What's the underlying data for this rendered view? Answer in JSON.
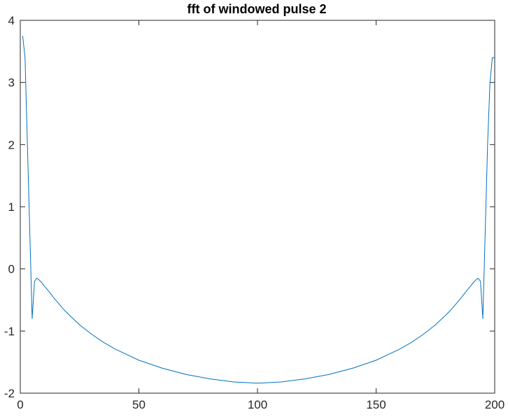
{
  "chart_data": {
    "type": "line",
    "title": "fft of windowed pulse 2",
    "xlabel": "",
    "ylabel": "",
    "xlim": [
      0,
      200
    ],
    "ylim": [
      -2,
      4
    ],
    "grid": false,
    "x_ticks": [
      "0",
      "50",
      "100",
      "150",
      "200"
    ],
    "y_ticks": [
      "-2",
      "-1",
      "0",
      "1",
      "2",
      "3",
      "4"
    ],
    "colors": {
      "line": "#0072BD",
      "axis": "#262626",
      "background": "#ffffff"
    },
    "series": [
      {
        "x": [
          1,
          2,
          3,
          4,
          5,
          6,
          7,
          8,
          9,
          10,
          12,
          14,
          16,
          18,
          20,
          25,
          30,
          35,
          40,
          50,
          60,
          70,
          80,
          90,
          100,
          110,
          120,
          130,
          140,
          150,
          160,
          165,
          170,
          175,
          180,
          182,
          184,
          186,
          188,
          190,
          191,
          192,
          193,
          194,
          195,
          196,
          197,
          198,
          199,
          200
        ],
        "y": [
          3.75,
          3.4,
          2.0,
          0.6,
          -0.8,
          -0.2,
          -0.15,
          -0.18,
          -0.22,
          -0.27,
          -0.36,
          -0.46,
          -0.55,
          -0.64,
          -0.72,
          -0.9,
          -1.05,
          -1.18,
          -1.29,
          -1.47,
          -1.6,
          -1.7,
          -1.77,
          -1.82,
          -1.84,
          -1.82,
          -1.77,
          -1.7,
          -1.6,
          -1.47,
          -1.29,
          -1.18,
          -1.05,
          -0.9,
          -0.72,
          -0.64,
          -0.55,
          -0.46,
          -0.36,
          -0.27,
          -0.22,
          -0.18,
          -0.15,
          -0.2,
          -0.8,
          0.6,
          2.0,
          3.0,
          3.4,
          3.4
        ]
      }
    ]
  }
}
